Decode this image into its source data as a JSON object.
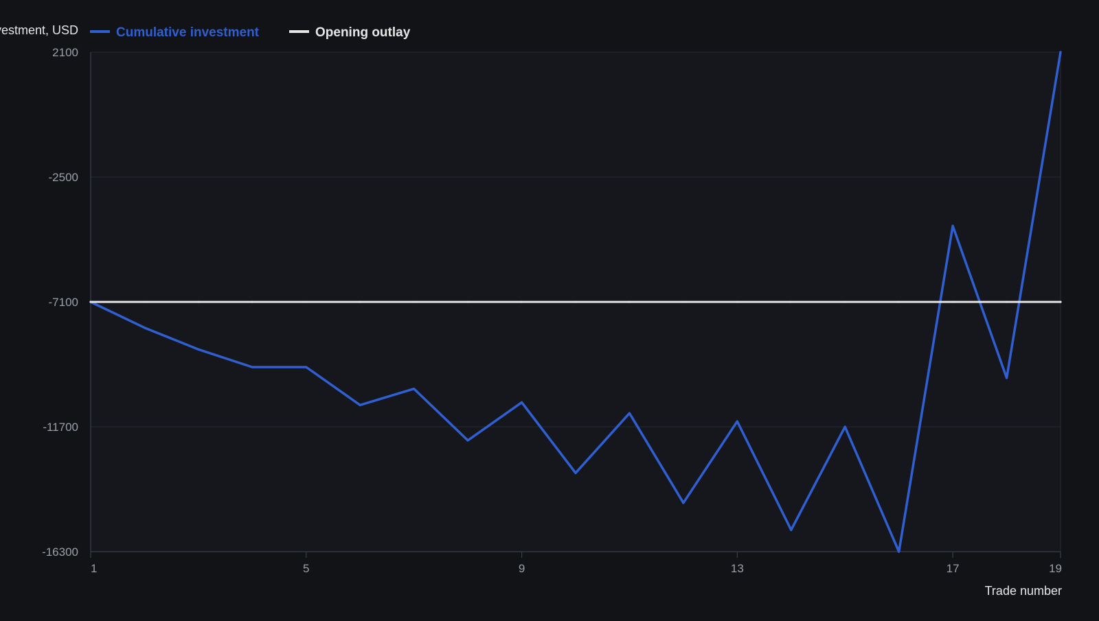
{
  "chart_data": {
    "type": "line",
    "title": "",
    "ylabel": "Cumulative investment, USD",
    "xlabel": "Trade number",
    "x": [
      1,
      2,
      3,
      4,
      5,
      6,
      7,
      8,
      9,
      10,
      11,
      12,
      13,
      14,
      15,
      16,
      17,
      18,
      19
    ],
    "xticks": [
      1,
      5,
      9,
      13,
      17,
      19
    ],
    "yticks": [
      2100,
      -2500,
      -7100,
      -11700,
      -16300
    ],
    "xlim": [
      1,
      19
    ],
    "ylim": [
      -16300,
      2100
    ],
    "grid": true,
    "legend_position": "top-left",
    "series": [
      {
        "name": "Cumulative investment",
        "color": "#2f5fd0",
        "values": [
          -7100,
          -8050,
          -8850,
          -9500,
          -9500,
          -10900,
          -10300,
          -12200,
          -10800,
          -13400,
          -11200,
          -14500,
          -11500,
          -15500,
          -11700,
          -16300,
          -4300,
          -9900,
          2100
        ]
      },
      {
        "name": "Opening outlay",
        "color": "#e6e6e6",
        "values": [
          -7100,
          -7100,
          -7100,
          -7100,
          -7100,
          -7100,
          -7100,
          -7100,
          -7100,
          -7100,
          -7100,
          -7100,
          -7100,
          -7100,
          -7100,
          -7100,
          -7100,
          -7100,
          -7100
        ]
      }
    ],
    "colors": {
      "background": "#111317",
      "plot_background": "#15171d",
      "grid": "#262a33",
      "axis": "#3a3f4a",
      "tick_text": "#9aa0aa",
      "label_text": "#e6e6e6"
    }
  }
}
